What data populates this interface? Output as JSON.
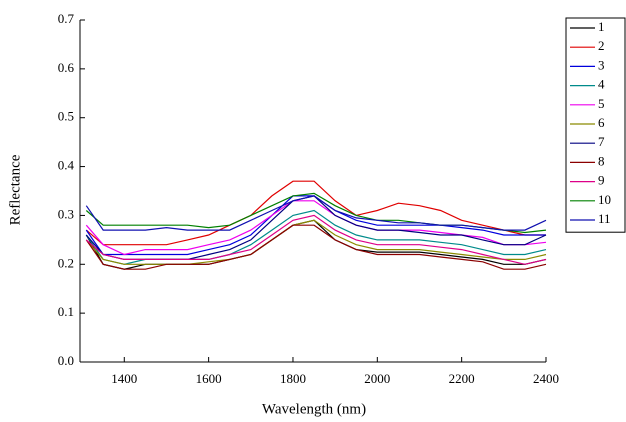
{
  "chart_data": {
    "type": "line",
    "x_label": "Wavelength (nm)",
    "y_label": "Reflectance",
    "xlim": [
      1295,
      2400
    ],
    "ylim": [
      0,
      0.7
    ],
    "xticks": [
      1400,
      1600,
      1800,
      2000,
      2200,
      2400
    ],
    "yticks": [
      {
        "value": 0,
        "label": "0.0"
      },
      0.1,
      0.2,
      0.3,
      0.4,
      0.5,
      0.6,
      0.7
    ],
    "grid": false,
    "legend": "right",
    "x": [
      1310,
      1350,
      1400,
      1450,
      1500,
      1550,
      1600,
      1650,
      1700,
      1750,
      1800,
      1850,
      1900,
      1950,
      2000,
      2050,
      2100,
      2150,
      2200,
      2250,
      2300,
      2350,
      2400
    ],
    "series": [
      {
        "name": "1",
        "color": "#000000",
        "values": [
          0.26,
          0.2,
          0.19,
          0.2,
          0.2,
          0.2,
          0.2,
          0.21,
          0.22,
          0.25,
          0.28,
          0.29,
          0.25,
          0.23,
          0.225,
          0.225,
          0.225,
          0.22,
          0.215,
          0.21,
          0.2,
          0.2,
          0.21
        ]
      },
      {
        "name": "2",
        "color": "#e00000",
        "values": [
          0.27,
          0.24,
          0.24,
          0.24,
          0.24,
          0.25,
          0.26,
          0.28,
          0.3,
          0.34,
          0.37,
          0.37,
          0.33,
          0.3,
          0.31,
          0.325,
          0.32,
          0.31,
          0.29,
          0.28,
          0.27,
          0.26,
          0.26
        ]
      },
      {
        "name": "3",
        "color": "#0000dd",
        "values": [
          0.27,
          0.22,
          0.22,
          0.22,
          0.22,
          0.22,
          0.23,
          0.24,
          0.26,
          0.3,
          0.34,
          0.34,
          0.31,
          0.29,
          0.28,
          0.28,
          0.28,
          0.28,
          0.275,
          0.27,
          0.26,
          0.26,
          0.26
        ]
      },
      {
        "name": "4",
        "color": "#008b8b",
        "values": [
          0.26,
          0.21,
          0.2,
          0.21,
          0.21,
          0.21,
          0.21,
          0.22,
          0.24,
          0.27,
          0.3,
          0.31,
          0.28,
          0.26,
          0.25,
          0.25,
          0.25,
          0.245,
          0.24,
          0.23,
          0.22,
          0.22,
          0.23
        ]
      },
      {
        "name": "5",
        "color": "#ee00ee",
        "values": [
          0.28,
          0.24,
          0.22,
          0.23,
          0.23,
          0.23,
          0.24,
          0.25,
          0.27,
          0.3,
          0.33,
          0.33,
          0.3,
          0.28,
          0.27,
          0.27,
          0.27,
          0.265,
          0.26,
          0.255,
          0.24,
          0.24,
          0.245
        ]
      },
      {
        "name": "6",
        "color": "#8b8b00",
        "values": [
          0.25,
          0.21,
          0.2,
          0.2,
          0.2,
          0.2,
          0.205,
          0.21,
          0.22,
          0.25,
          0.28,
          0.29,
          0.26,
          0.24,
          0.23,
          0.23,
          0.23,
          0.225,
          0.22,
          0.215,
          0.21,
          0.21,
          0.22
        ]
      },
      {
        "name": "7",
        "color": "#000080",
        "values": [
          0.26,
          0.22,
          0.21,
          0.21,
          0.21,
          0.21,
          0.22,
          0.23,
          0.25,
          0.29,
          0.33,
          0.34,
          0.3,
          0.28,
          0.27,
          0.27,
          0.265,
          0.26,
          0.26,
          0.25,
          0.24,
          0.24,
          0.26
        ]
      },
      {
        "name": "8",
        "color": "#8b0000",
        "values": [
          0.25,
          0.2,
          0.19,
          0.19,
          0.2,
          0.2,
          0.2,
          0.21,
          0.22,
          0.25,
          0.28,
          0.28,
          0.25,
          0.23,
          0.22,
          0.22,
          0.22,
          0.215,
          0.21,
          0.205,
          0.19,
          0.19,
          0.2
        ]
      },
      {
        "name": "9",
        "color": "#dd0088",
        "values": [
          0.25,
          0.22,
          0.21,
          0.21,
          0.21,
          0.21,
          0.21,
          0.22,
          0.23,
          0.26,
          0.29,
          0.3,
          0.27,
          0.25,
          0.24,
          0.24,
          0.24,
          0.235,
          0.23,
          0.22,
          0.21,
          0.2,
          0.21
        ]
      },
      {
        "name": "10",
        "color": "#008000",
        "values": [
          0.31,
          0.28,
          0.28,
          0.28,
          0.28,
          0.28,
          0.275,
          0.28,
          0.3,
          0.32,
          0.34,
          0.345,
          0.32,
          0.3,
          0.29,
          0.29,
          0.285,
          0.28,
          0.28,
          0.275,
          0.27,
          0.265,
          0.27
        ]
      },
      {
        "name": "11",
        "color": "#1010b0",
        "values": [
          0.32,
          0.27,
          0.27,
          0.27,
          0.275,
          0.27,
          0.27,
          0.27,
          0.29,
          0.31,
          0.33,
          0.34,
          0.31,
          0.295,
          0.29,
          0.285,
          0.285,
          0.28,
          0.28,
          0.275,
          0.27,
          0.27,
          0.29
        ]
      }
    ]
  }
}
